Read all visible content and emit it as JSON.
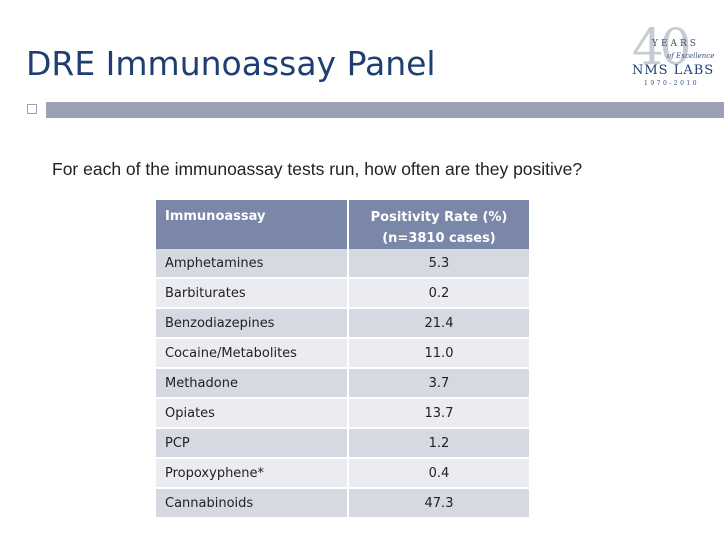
{
  "slide": {
    "title": "DRE Immunoassay Panel",
    "question": "For each of the immunoassay tests run, how often are they positive?"
  },
  "logo": {
    "number": "40",
    "years": "YEARS",
    "tagline": "of Excellence",
    "name": "NMS LABS",
    "range": "1970-2010"
  },
  "table": {
    "headers": {
      "col1": "Immunoassay",
      "col2_line1": "Positivity Rate (%)",
      "col2_line2": "(n=3810 cases)"
    },
    "rows": [
      {
        "name": "Amphetamines",
        "rate": "5.3"
      },
      {
        "name": "Barbiturates",
        "rate": "0.2"
      },
      {
        "name": "Benzodiazepines",
        "rate": "21.4"
      },
      {
        "name": "Cocaine/Metabolites",
        "rate": "11.0"
      },
      {
        "name": "Methadone",
        "rate": "3.7"
      },
      {
        "name": "Opiates",
        "rate": "13.7"
      },
      {
        "name": "PCP",
        "rate": "1.2"
      },
      {
        "name": "Propoxyphene*",
        "rate": "0.4"
      },
      {
        "name": "Cannabinoids",
        "rate": "47.3"
      }
    ]
  }
}
